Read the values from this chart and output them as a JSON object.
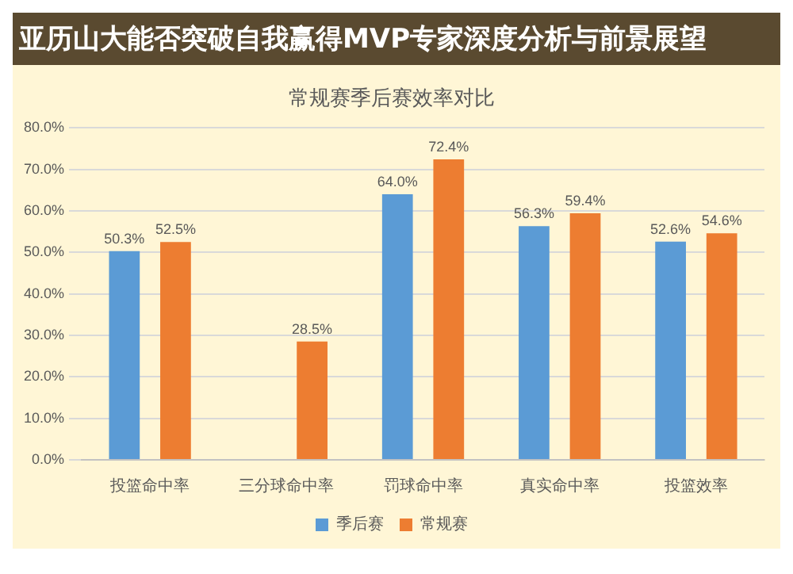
{
  "chart_data": {
    "type": "bar",
    "title": "常规赛季后赛效率对比",
    "annotations": [
      "亚历山大能否突破自我赢得MVP专家深度分析与前景展望"
    ],
    "categories": [
      "投篮命中率",
      "三分球命中率",
      "罚球命中率",
      "真实命中率",
      "投篮效率"
    ],
    "series": [
      {
        "name": "季后赛",
        "color": "#5b9bd5",
        "values": [
          50.3,
          null,
          64.0,
          56.3,
          52.6
        ],
        "value_labels": [
          "50.3%",
          null,
          "64.0%",
          "56.3%",
          "52.6%"
        ]
      },
      {
        "name": "常规赛",
        "color": "#ed7d31",
        "values": [
          52.5,
          28.5,
          72.4,
          59.4,
          54.6
        ],
        "value_labels": [
          "52.5%",
          "28.5%",
          "72.4%",
          "59.4%",
          "54.6%"
        ]
      }
    ],
    "ylim": [
      0,
      80
    ],
    "yticks": [
      {
        "value": 0,
        "label": "0.0%"
      },
      {
        "value": 10,
        "label": "10.0%"
      },
      {
        "value": 20,
        "label": "20.0%"
      },
      {
        "value": 30,
        "label": "30.0%"
      },
      {
        "value": 40,
        "label": "40.0%"
      },
      {
        "value": 50,
        "label": "50.0%"
      },
      {
        "value": 60,
        "label": "60.0%"
      },
      {
        "value": 70,
        "label": "70.0%"
      },
      {
        "value": 80,
        "label": "80.0%"
      }
    ],
    "grid": "y",
    "legend": "bottom"
  }
}
